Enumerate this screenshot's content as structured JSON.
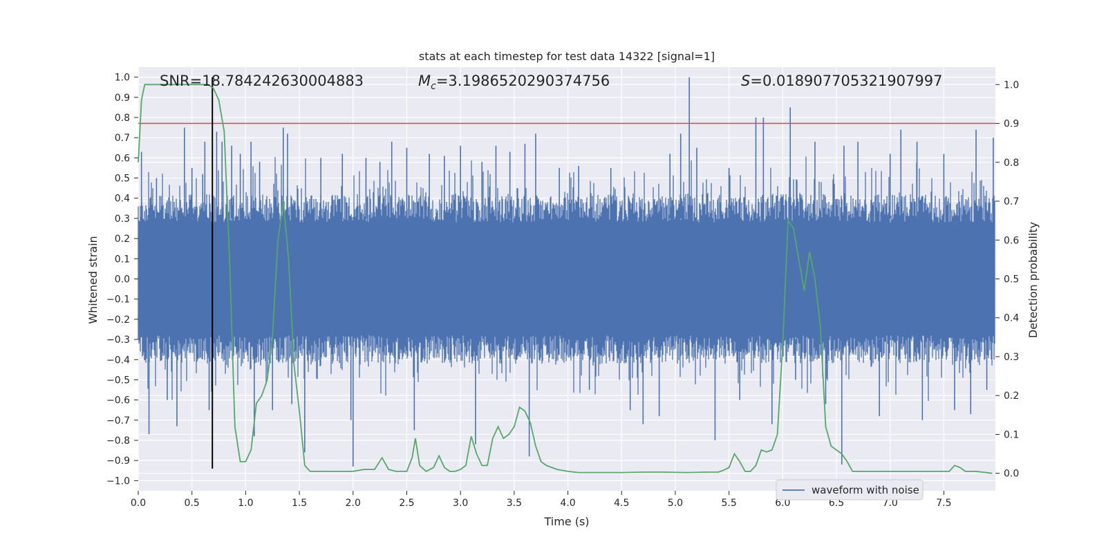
{
  "chart_data": {
    "type": "line",
    "title": "stats at each timestep for test data 14322 [signal=1]",
    "xlabel": "Time (s)",
    "ylabel": "Whitened strain",
    "ylabel_right": "Detection probability",
    "xlim": [
      0.0,
      7.98
    ],
    "ylim": [
      -1.05,
      1.05
    ],
    "ylim_right": [
      -0.045,
      1.045
    ],
    "xticks": [
      0.0,
      0.5,
      1.0,
      1.5,
      2.0,
      2.5,
      3.0,
      3.5,
      4.0,
      4.5,
      5.0,
      5.5,
      6.0,
      6.5,
      7.0,
      7.5
    ],
    "xtick_labels": [
      "0.0",
      "0.5",
      "1.0",
      "1.5",
      "2.0",
      "2.5",
      "3.0",
      "3.5",
      "4.0",
      "4.5",
      "5.0",
      "5.5",
      "6.0",
      "6.5",
      "7.0",
      "7.5"
    ],
    "yticks": [
      1.0,
      0.9,
      0.8,
      0.7,
      0.6,
      0.5,
      0.4,
      0.3,
      0.2,
      0.1,
      0.0,
      -0.1,
      -0.2,
      -0.3,
      -0.4,
      -0.5,
      -0.6,
      -0.7,
      -0.8,
      -0.9,
      -1.0
    ],
    "ytick_labels": [
      "1.0",
      "0.9",
      "0.8",
      "0.7",
      "0.6",
      "0.5",
      "0.4",
      "0.3",
      "0.2",
      "0.1",
      "0.0",
      "−0.1",
      "−0.2",
      "−0.3",
      "−0.4",
      "−0.5",
      "−0.6",
      "−0.7",
      "−0.8",
      "−0.9",
      "−1.0"
    ],
    "yticks_right": [
      1.0,
      0.9,
      0.8,
      0.7,
      0.6,
      0.5,
      0.4,
      0.3,
      0.2,
      0.1,
      0.0
    ],
    "ytick_labels_right": [
      "1.0",
      "0.9",
      "0.8",
      "0.7",
      "0.6",
      "0.5",
      "0.4",
      "0.3",
      "0.2",
      "0.1",
      "0.0"
    ],
    "annotations": {
      "snr": "SNR=18.784242630004883",
      "mc_symbol": "M",
      "mc_sub": "c",
      "mc_value": "=3.1986520290374756",
      "s_symbol": "S",
      "s_value": "=0.018907705321907997"
    },
    "threshold_right": 0.9,
    "event_time": 0.69,
    "event_line_y": [
      -0.94,
      1.0
    ],
    "legend": {
      "label": "waveform with noise",
      "placement": "lower-right"
    },
    "waveform": {
      "name": "waveform with noise",
      "envelope_upper": 0.3,
      "envelope_lower": -0.3,
      "peaks": [
        [
          0.03,
          0.63
        ],
        [
          0.1,
          -0.77
        ],
        [
          0.17,
          0.5
        ],
        [
          0.27,
          -0.6
        ],
        [
          0.36,
          -0.73
        ],
        [
          0.43,
          0.75
        ],
        [
          0.5,
          0.55
        ],
        [
          0.6,
          0.52
        ],
        [
          0.62,
          0.68
        ],
        [
          0.66,
          -0.65
        ],
        [
          0.73,
          0.73
        ],
        [
          0.78,
          0.68
        ],
        [
          0.87,
          0.66
        ],
        [
          0.95,
          0.62
        ],
        [
          1.05,
          0.68
        ],
        [
          1.08,
          -0.78
        ],
        [
          1.13,
          0.58
        ],
        [
          1.25,
          -0.65
        ],
        [
          1.35,
          0.75
        ],
        [
          1.39,
          0.72
        ],
        [
          1.43,
          -0.62
        ],
        [
          1.55,
          -0.86
        ],
        [
          1.7,
          0.6
        ],
        [
          1.9,
          0.62
        ],
        [
          1.98,
          -0.7
        ],
        [
          2.0,
          -0.93
        ],
        [
          2.12,
          0.6
        ],
        [
          2.25,
          0.58
        ],
        [
          2.36,
          0.68
        ],
        [
          2.5,
          0.65
        ],
        [
          2.57,
          -0.75
        ],
        [
          2.71,
          0.62
        ],
        [
          2.85,
          0.61
        ],
        [
          3.0,
          0.66
        ],
        [
          3.14,
          -0.82
        ],
        [
          3.2,
          0.58
        ],
        [
          3.33,
          0.66
        ],
        [
          3.46,
          0.63
        ],
        [
          3.6,
          0.67
        ],
        [
          3.64,
          -0.88
        ],
        [
          3.7,
          0.72
        ],
        [
          3.92,
          0.55
        ],
        [
          4.1,
          0.56
        ],
        [
          4.2,
          -0.55
        ],
        [
          4.4,
          0.55
        ],
        [
          4.58,
          -0.65
        ],
        [
          4.7,
          -0.72
        ],
        [
          4.85,
          -0.68
        ],
        [
          4.95,
          0.62
        ],
        [
          5.05,
          0.72
        ],
        [
          5.13,
          1.0
        ],
        [
          5.2,
          0.65
        ],
        [
          5.37,
          -0.8
        ],
        [
          5.5,
          0.55
        ],
        [
          5.6,
          -0.6
        ],
        [
          5.75,
          0.8
        ],
        [
          5.82,
          0.8
        ],
        [
          5.9,
          -0.72
        ],
        [
          6.07,
          0.85
        ],
        [
          6.12,
          -0.5
        ],
        [
          6.3,
          0.68
        ],
        [
          6.4,
          -0.62
        ],
        [
          6.55,
          -0.92
        ],
        [
          6.57,
          0.66
        ],
        [
          6.7,
          0.68
        ],
        [
          6.9,
          -0.68
        ],
        [
          7.0,
          0.62
        ],
        [
          7.1,
          0.74
        ],
        [
          7.25,
          0.68
        ],
        [
          7.3,
          -0.7
        ],
        [
          7.5,
          0.62
        ],
        [
          7.6,
          -0.65
        ],
        [
          7.75,
          -0.67
        ],
        [
          7.8,
          0.74
        ],
        [
          7.9,
          -0.55
        ],
        [
          7.96,
          0.7
        ]
      ]
    },
    "detection_probability": {
      "name": "Detection probability",
      "x": [
        0.0,
        0.03,
        0.06,
        0.1,
        0.15,
        0.2,
        0.3,
        0.4,
        0.5,
        0.6,
        0.65,
        0.7,
        0.75,
        0.8,
        0.85,
        0.9,
        0.95,
        1.0,
        1.05,
        1.1,
        1.15,
        1.2,
        1.25,
        1.3,
        1.35,
        1.4,
        1.45,
        1.5,
        1.55,
        1.6,
        1.7,
        1.8,
        1.9,
        2.0,
        2.1,
        2.2,
        2.27,
        2.33,
        2.4,
        2.45,
        2.5,
        2.55,
        2.58,
        2.62,
        2.68,
        2.75,
        2.8,
        2.85,
        2.9,
        2.95,
        3.0,
        3.05,
        3.1,
        3.15,
        3.2,
        3.25,
        3.3,
        3.35,
        3.4,
        3.45,
        3.5,
        3.55,
        3.6,
        3.65,
        3.7,
        3.75,
        3.8,
        3.9,
        4.0,
        4.1,
        4.3,
        4.5,
        4.7,
        4.9,
        5.1,
        5.3,
        5.4,
        5.45,
        5.5,
        5.55,
        5.6,
        5.65,
        5.7,
        5.75,
        5.8,
        5.85,
        5.9,
        5.95,
        6.0,
        6.05,
        6.1,
        6.15,
        6.2,
        6.25,
        6.3,
        6.35,
        6.4,
        6.45,
        6.5,
        6.55,
        6.6,
        6.65,
        6.7,
        6.8,
        6.9,
        7.0,
        7.2,
        7.4,
        7.5,
        7.55,
        7.6,
        7.65,
        7.7,
        7.8,
        7.95
      ],
      "y": [
        0.8,
        0.96,
        1.0,
        1.0,
        1.0,
        1.0,
        1.0,
        1.0,
        1.0,
        1.0,
        1.0,
        0.99,
        0.96,
        0.88,
        0.55,
        0.12,
        0.03,
        0.03,
        0.06,
        0.18,
        0.2,
        0.24,
        0.35,
        0.6,
        0.7,
        0.55,
        0.28,
        0.16,
        0.02,
        0.005,
        0.005,
        0.005,
        0.005,
        0.005,
        0.01,
        0.01,
        0.04,
        0.01,
        0.005,
        0.005,
        0.005,
        0.04,
        0.09,
        0.02,
        0.005,
        0.015,
        0.045,
        0.015,
        0.005,
        0.005,
        0.01,
        0.02,
        0.095,
        0.05,
        0.02,
        0.02,
        0.09,
        0.12,
        0.09,
        0.1,
        0.12,
        0.17,
        0.16,
        0.13,
        0.07,
        0.03,
        0.02,
        0.01,
        0.005,
        0.002,
        0.002,
        0.002,
        0.003,
        0.003,
        0.002,
        0.003,
        0.003,
        0.008,
        0.015,
        0.05,
        0.03,
        0.005,
        0.005,
        0.02,
        0.06,
        0.055,
        0.06,
        0.1,
        0.33,
        0.65,
        0.63,
        0.55,
        0.47,
        0.57,
        0.5,
        0.38,
        0.12,
        0.07,
        0.06,
        0.05,
        0.03,
        0.005,
        0.005,
        0.005,
        0.005,
        0.005,
        0.005,
        0.005,
        0.005,
        0.005,
        0.02,
        0.015,
        0.005,
        0.005,
        0.0
      ]
    },
    "colors": {
      "background": "#eaeaf2",
      "grid": "#ffffff",
      "waveform": "#4c72b0",
      "probability": "#55a868",
      "threshold": "#c44e52",
      "event_line": "#000000",
      "text": "#262626"
    }
  }
}
